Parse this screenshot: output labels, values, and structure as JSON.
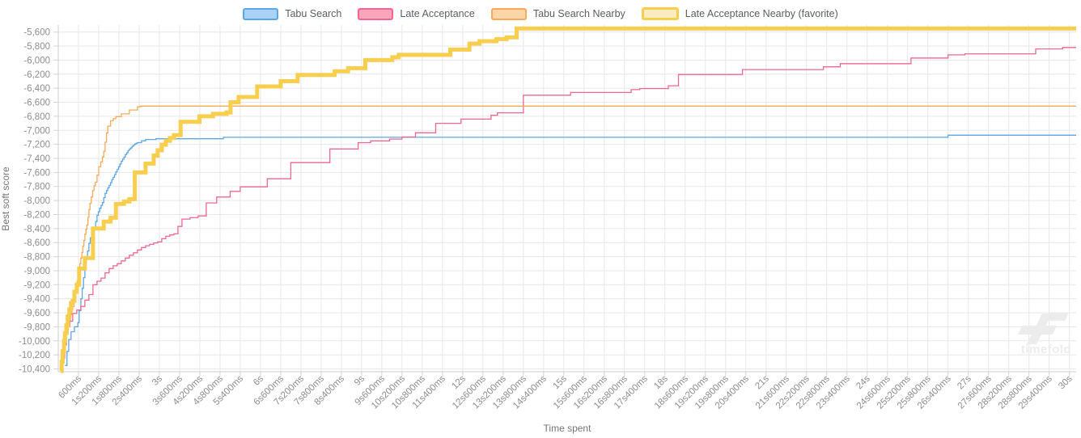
{
  "legend": {
    "items": [
      {
        "label": "Tabu Search",
        "line_color": "#5aa6e7",
        "swatch_fill": "#a9d2f4",
        "favorite": false
      },
      {
        "label": "Late Acceptance",
        "line_color": "#ee6790",
        "swatch_fill": "#f7a6bc",
        "favorite": false
      },
      {
        "label": "Tabu Search Nearby",
        "line_color": "#f9a957",
        "swatch_fill": "#fcd6a8",
        "favorite": false
      },
      {
        "label": "Late Acceptance Nearby (favorite)",
        "line_color": "#f8ce4f",
        "swatch_fill": "#fbedbf",
        "favorite": true
      }
    ]
  },
  "watermark": {
    "text": "timefold"
  },
  "chart_data": {
    "type": "line",
    "step": true,
    "title": "",
    "xlabel": "Time spent",
    "ylabel": "Best soft score",
    "x_unit": "seconds",
    "xlim": [
      0,
      30.2
    ],
    "ylim": [
      -10440,
      -5500
    ],
    "grid": true,
    "legend_position": "top",
    "x_ticks": [
      {
        "v": 0.6,
        "label": "600ms"
      },
      {
        "v": 1.2,
        "label": "1s200ms"
      },
      {
        "v": 1.8,
        "label": "1s800ms"
      },
      {
        "v": 2.4,
        "label": "2s400ms"
      },
      {
        "v": 3,
        "label": "3s"
      },
      {
        "v": 3.6,
        "label": "3s600ms"
      },
      {
        "v": 4.2,
        "label": "4s200ms"
      },
      {
        "v": 4.8,
        "label": "4s800ms"
      },
      {
        "v": 5.4,
        "label": "5s400ms"
      },
      {
        "v": 6,
        "label": "6s"
      },
      {
        "v": 6.6,
        "label": "6s600ms"
      },
      {
        "v": 7.2,
        "label": "7s200ms"
      },
      {
        "v": 7.8,
        "label": "7s800ms"
      },
      {
        "v": 8.4,
        "label": "8s400ms"
      },
      {
        "v": 9,
        "label": "9s"
      },
      {
        "v": 9.6,
        "label": "9s600ms"
      },
      {
        "v": 10.2,
        "label": "10s200ms"
      },
      {
        "v": 10.8,
        "label": "10s800ms"
      },
      {
        "v": 11.4,
        "label": "11s400ms"
      },
      {
        "v": 12,
        "label": "12s"
      },
      {
        "v": 12.6,
        "label": "12s600ms"
      },
      {
        "v": 13.2,
        "label": "13s200ms"
      },
      {
        "v": 13.8,
        "label": "13s800ms"
      },
      {
        "v": 14.4,
        "label": "14s400ms"
      },
      {
        "v": 15,
        "label": "15s"
      },
      {
        "v": 15.6,
        "label": "15s600ms"
      },
      {
        "v": 16.2,
        "label": "16s200ms"
      },
      {
        "v": 16.8,
        "label": "16s800ms"
      },
      {
        "v": 17.4,
        "label": "17s400ms"
      },
      {
        "v": 18,
        "label": "18s"
      },
      {
        "v": 18.6,
        "label": "18s600ms"
      },
      {
        "v": 19.2,
        "label": "19s200ms"
      },
      {
        "v": 19.8,
        "label": "19s800ms"
      },
      {
        "v": 20.4,
        "label": "20s400ms"
      },
      {
        "v": 21,
        "label": "21s"
      },
      {
        "v": 21.6,
        "label": "21s600ms"
      },
      {
        "v": 22.2,
        "label": "22s200ms"
      },
      {
        "v": 22.8,
        "label": "22s800ms"
      },
      {
        "v": 23.4,
        "label": "23s400ms"
      },
      {
        "v": 24,
        "label": "24s"
      },
      {
        "v": 24.6,
        "label": "24s600ms"
      },
      {
        "v": 25.2,
        "label": "25s200ms"
      },
      {
        "v": 25.8,
        "label": "25s800ms"
      },
      {
        "v": 26.4,
        "label": "26s400ms"
      },
      {
        "v": 27,
        "label": "27s"
      },
      {
        "v": 27.6,
        "label": "27s600ms"
      },
      {
        "v": 28.2,
        "label": "28s200ms"
      },
      {
        "v": 28.8,
        "label": "28s800ms"
      },
      {
        "v": 29.4,
        "label": "29s400ms"
      },
      {
        "v": 30,
        "label": "30s"
      }
    ],
    "y_ticks": [
      {
        "v": -5600,
        "label": "-5,600"
      },
      {
        "v": -5800,
        "label": "-5,800"
      },
      {
        "v": -6000,
        "label": "-6,000"
      },
      {
        "v": -6200,
        "label": "-6,200"
      },
      {
        "v": -6400,
        "label": "-6,400"
      },
      {
        "v": -6600,
        "label": "-6,600"
      },
      {
        "v": -6800,
        "label": "-6,800"
      },
      {
        "v": -7000,
        "label": "-7,000"
      },
      {
        "v": -7200,
        "label": "-7,200"
      },
      {
        "v": -7400,
        "label": "-7,400"
      },
      {
        "v": -7600,
        "label": "-7,600"
      },
      {
        "v": -7800,
        "label": "-7,800"
      },
      {
        "v": -8000,
        "label": "-8,000"
      },
      {
        "v": -8200,
        "label": "-8,200"
      },
      {
        "v": -8400,
        "label": "-8,400"
      },
      {
        "v": -8600,
        "label": "-8,600"
      },
      {
        "v": -8800,
        "label": "-8,800"
      },
      {
        "v": -9000,
        "label": "-9,000"
      },
      {
        "v": -9200,
        "label": "-9,200"
      },
      {
        "v": -9400,
        "label": "-9,400"
      },
      {
        "v": -9600,
        "label": "-9,600"
      },
      {
        "v": -9800,
        "label": "-9,800"
      },
      {
        "v": -10000,
        "label": "-10,000"
      },
      {
        "v": -10200,
        "label": "-10,200"
      },
      {
        "v": -10400,
        "label": "-10,400"
      }
    ],
    "series": [
      {
        "name": "Tabu Search",
        "color": "#5aa6e7",
        "line_width": 1.3,
        "points": [
          [
            0.2,
            -10350
          ],
          [
            0.26,
            -10150
          ],
          [
            0.31,
            -9980
          ],
          [
            0.38,
            -9870
          ],
          [
            0.48,
            -9800
          ],
          [
            0.58,
            -9740
          ],
          [
            0.62,
            -9570
          ],
          [
            0.67,
            -9400
          ],
          [
            0.71,
            -9250
          ],
          [
            0.75,
            -9100
          ],
          [
            0.79,
            -8970
          ],
          [
            0.83,
            -8830
          ],
          [
            0.87,
            -8720
          ],
          [
            0.91,
            -8610
          ],
          [
            0.95,
            -8530
          ],
          [
            0.99,
            -8480
          ],
          [
            1.03,
            -8440
          ],
          [
            1.07,
            -8380
          ],
          [
            1.11,
            -8300
          ],
          [
            1.15,
            -8210
          ],
          [
            1.19,
            -8160
          ],
          [
            1.23,
            -8110
          ],
          [
            1.27,
            -8070
          ],
          [
            1.31,
            -8030
          ],
          [
            1.35,
            -7960
          ],
          [
            1.39,
            -7900
          ],
          [
            1.43,
            -7860
          ],
          [
            1.47,
            -7820
          ],
          [
            1.51,
            -7785
          ],
          [
            1.55,
            -7745
          ],
          [
            1.59,
            -7700
          ],
          [
            1.63,
            -7670
          ],
          [
            1.67,
            -7630
          ],
          [
            1.71,
            -7590
          ],
          [
            1.75,
            -7555
          ],
          [
            1.79,
            -7520
          ],
          [
            1.83,
            -7480
          ],
          [
            1.87,
            -7440
          ],
          [
            1.91,
            -7410
          ],
          [
            1.95,
            -7380
          ],
          [
            1.99,
            -7345
          ],
          [
            2.03,
            -7320
          ],
          [
            2.07,
            -7290
          ],
          [
            2.11,
            -7265
          ],
          [
            2.15,
            -7250
          ],
          [
            2.19,
            -7230
          ],
          [
            2.23,
            -7210
          ],
          [
            2.27,
            -7195
          ],
          [
            2.31,
            -7185
          ],
          [
            2.35,
            -7175
          ],
          [
            2.47,
            -7150
          ],
          [
            2.59,
            -7130
          ],
          [
            2.9,
            -7120
          ],
          [
            4.9,
            -7100
          ],
          [
            26.4,
            -7070
          ],
          [
            30.2,
            -7070
          ]
        ]
      },
      {
        "name": "Late Acceptance",
        "color": "#ee6790",
        "line_width": 1.3,
        "points": [
          [
            0.1,
            -10400
          ],
          [
            0.14,
            -10250
          ],
          [
            0.19,
            -10060
          ],
          [
            0.24,
            -9900
          ],
          [
            0.29,
            -9800
          ],
          [
            0.34,
            -9720
          ],
          [
            0.43,
            -9610
          ],
          [
            0.55,
            -9560
          ],
          [
            0.67,
            -9510
          ],
          [
            0.79,
            -9420
          ],
          [
            0.91,
            -9340
          ],
          [
            1.03,
            -9200
          ],
          [
            1.15,
            -9150
          ],
          [
            1.27,
            -9105
          ],
          [
            1.39,
            -9030
          ],
          [
            1.51,
            -8970
          ],
          [
            1.63,
            -8930
          ],
          [
            1.75,
            -8900
          ],
          [
            1.87,
            -8860
          ],
          [
            1.99,
            -8820
          ],
          [
            2.11,
            -8780
          ],
          [
            2.23,
            -8745
          ],
          [
            2.35,
            -8705
          ],
          [
            2.47,
            -8670
          ],
          [
            2.59,
            -8645
          ],
          [
            2.71,
            -8625
          ],
          [
            2.83,
            -8605
          ],
          [
            2.95,
            -8590
          ],
          [
            3.07,
            -8545
          ],
          [
            3.19,
            -8510
          ],
          [
            3.31,
            -8490
          ],
          [
            3.43,
            -8475
          ],
          [
            3.55,
            -8370
          ],
          [
            3.67,
            -8265
          ],
          [
            3.91,
            -8245
          ],
          [
            4.15,
            -8220
          ],
          [
            4.39,
            -8035
          ],
          [
            4.7,
            -7950
          ],
          [
            5.1,
            -7870
          ],
          [
            5.4,
            -7805
          ],
          [
            6.2,
            -7690
          ],
          [
            6.9,
            -7460
          ],
          [
            8.06,
            -7265
          ],
          [
            8.9,
            -7175
          ],
          [
            9.27,
            -7150
          ],
          [
            9.83,
            -7125
          ],
          [
            10.2,
            -7095
          ],
          [
            10.6,
            -7035
          ],
          [
            11.2,
            -6900
          ],
          [
            11.95,
            -6840
          ],
          [
            12.84,
            -6785
          ],
          [
            13.03,
            -6750
          ],
          [
            13.8,
            -6500
          ],
          [
            15.2,
            -6460
          ],
          [
            17.0,
            -6420
          ],
          [
            17.25,
            -6405
          ],
          [
            18.1,
            -6365
          ],
          [
            18.4,
            -6205
          ],
          [
            20.3,
            -6135
          ],
          [
            22.7,
            -6095
          ],
          [
            23.2,
            -6050
          ],
          [
            25.3,
            -5970
          ],
          [
            26.4,
            -5925
          ],
          [
            26.9,
            -5910
          ],
          [
            29.0,
            -5840
          ],
          [
            29.8,
            -5820
          ],
          [
            30.2,
            -5820
          ]
        ]
      },
      {
        "name": "Tabu Search Nearby",
        "color": "#f9a957",
        "line_width": 1.3,
        "points": [
          [
            0.05,
            -10400
          ],
          [
            0.08,
            -10300
          ],
          [
            0.11,
            -10200
          ],
          [
            0.14,
            -10100
          ],
          [
            0.17,
            -10010
          ],
          [
            0.2,
            -9940
          ],
          [
            0.24,
            -9870
          ],
          [
            0.28,
            -9790
          ],
          [
            0.32,
            -9710
          ],
          [
            0.36,
            -9630
          ],
          [
            0.4,
            -9560
          ],
          [
            0.43,
            -9510
          ],
          [
            0.47,
            -9400
          ],
          [
            0.5,
            -9330
          ],
          [
            0.53,
            -9240
          ],
          [
            0.56,
            -9150
          ],
          [
            0.6,
            -9000
          ],
          [
            0.64,
            -8900
          ],
          [
            0.67,
            -8820
          ],
          [
            0.7,
            -8740
          ],
          [
            0.73,
            -8650
          ],
          [
            0.76,
            -8570
          ],
          [
            0.79,
            -8480
          ],
          [
            0.82,
            -8410
          ],
          [
            0.85,
            -8350
          ],
          [
            0.88,
            -8240
          ],
          [
            0.91,
            -8130
          ],
          [
            0.94,
            -8040
          ],
          [
            0.98,
            -7950
          ],
          [
            1.02,
            -7860
          ],
          [
            1.06,
            -7790
          ],
          [
            1.1,
            -7740
          ],
          [
            1.15,
            -7640
          ],
          [
            1.2,
            -7520
          ],
          [
            1.26,
            -7450
          ],
          [
            1.31,
            -7380
          ],
          [
            1.35,
            -7300
          ],
          [
            1.39,
            -7170
          ],
          [
            1.43,
            -7040
          ],
          [
            1.47,
            -6940
          ],
          [
            1.55,
            -6865
          ],
          [
            1.63,
            -6835
          ],
          [
            1.71,
            -6805
          ],
          [
            1.87,
            -6765
          ],
          [
            2.11,
            -6710
          ],
          [
            2.35,
            -6665
          ],
          [
            2.43,
            -6655
          ],
          [
            30.2,
            -6655
          ]
        ]
      },
      {
        "name": "Late Acceptance Nearby (favorite)",
        "color": "#f8ce4f",
        "line_width": 5,
        "points": [
          [
            0.08,
            -10430
          ],
          [
            0.1,
            -10300
          ],
          [
            0.13,
            -10150
          ],
          [
            0.17,
            -10000
          ],
          [
            0.2,
            -9890
          ],
          [
            0.24,
            -9780
          ],
          [
            0.28,
            -9650
          ],
          [
            0.33,
            -9550
          ],
          [
            0.38,
            -9460
          ],
          [
            0.43,
            -9430
          ],
          [
            0.48,
            -9300
          ],
          [
            0.55,
            -9200
          ],
          [
            0.62,
            -8970
          ],
          [
            0.79,
            -8820
          ],
          [
            1.03,
            -8400
          ],
          [
            1.35,
            -8300
          ],
          [
            1.55,
            -8245
          ],
          [
            1.71,
            -8050
          ],
          [
            1.95,
            -8015
          ],
          [
            2.11,
            -7980
          ],
          [
            2.27,
            -7600
          ],
          [
            2.59,
            -7475
          ],
          [
            2.83,
            -7360
          ],
          [
            2.95,
            -7285
          ],
          [
            3.07,
            -7205
          ],
          [
            3.19,
            -7150
          ],
          [
            3.31,
            -7110
          ],
          [
            3.43,
            -7070
          ],
          [
            3.63,
            -6880
          ],
          [
            4.19,
            -6800
          ],
          [
            4.59,
            -6765
          ],
          [
            4.99,
            -6745
          ],
          [
            5.11,
            -6600
          ],
          [
            5.35,
            -6525
          ],
          [
            5.9,
            -6375
          ],
          [
            6.6,
            -6300
          ],
          [
            7.1,
            -6210
          ],
          [
            8.2,
            -6160
          ],
          [
            8.6,
            -6115
          ],
          [
            9.11,
            -6000
          ],
          [
            9.91,
            -5960
          ],
          [
            10.1,
            -5925
          ],
          [
            11.63,
            -5850
          ],
          [
            12.2,
            -5765
          ],
          [
            12.5,
            -5730
          ],
          [
            13.0,
            -5700
          ],
          [
            13.3,
            -5675
          ],
          [
            13.6,
            -5550
          ],
          [
            30.2,
            -5550
          ]
        ]
      }
    ]
  }
}
